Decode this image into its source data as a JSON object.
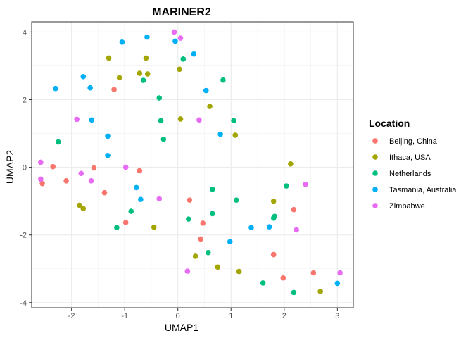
{
  "chart_data": {
    "type": "scatter",
    "title": "MARINER2",
    "xlabel": "UMAP1",
    "ylabel": "UMAP2",
    "xlim": [
      -2.75,
      3.3
    ],
    "ylim": [
      -4.15,
      4.3
    ],
    "xticks": [
      -2,
      -1,
      0,
      1,
      2,
      3
    ],
    "xtick_labels": [
      "-2",
      "-1",
      "0",
      "1",
      "2",
      "3"
    ],
    "yticks": [
      -4,
      -2,
      0,
      2,
      4
    ],
    "ytick_labels": [
      "-4",
      "-2",
      "0",
      "2",
      "4"
    ],
    "grid": true,
    "legend": {
      "title": "Location",
      "position": "right"
    },
    "series": [
      {
        "name": "Beijing, China",
        "color": "#F8766D",
        "points": [
          [
            -1.2,
            2.3
          ],
          [
            -2.55,
            -0.48
          ],
          [
            -2.35,
            0.02
          ],
          [
            -2.1,
            -0.4
          ],
          [
            -1.58,
            -0.02
          ],
          [
            -1.38,
            -0.75
          ],
          [
            -0.98,
            -1.63
          ],
          [
            -0.72,
            -0.1
          ],
          [
            0.22,
            -0.97
          ],
          [
            0.47,
            -1.65
          ],
          [
            0.43,
            -2.12
          ],
          [
            1.8,
            -2.58
          ],
          [
            2.18,
            -1.25
          ],
          [
            1.98,
            -3.27
          ],
          [
            2.55,
            -3.12
          ]
        ]
      },
      {
        "name": "Ithaca, USA",
        "color": "#A3A500",
        "points": [
          [
            -1.3,
            3.23
          ],
          [
            -1.1,
            2.65
          ],
          [
            -0.6,
            3.23
          ],
          [
            -0.72,
            2.78
          ],
          [
            -0.57,
            2.76
          ],
          [
            0.03,
            2.9
          ],
          [
            0.6,
            1.8
          ],
          [
            0.05,
            1.43
          ],
          [
            1.08,
            0.95
          ],
          [
            2.12,
            0.1
          ],
          [
            -1.85,
            -1.12
          ],
          [
            -1.78,
            -1.22
          ],
          [
            -0.45,
            -1.77
          ],
          [
            1.8,
            -1.0
          ],
          [
            0.75,
            -2.95
          ],
          [
            0.33,
            -2.63
          ],
          [
            1.15,
            -3.08
          ],
          [
            2.68,
            -3.67
          ]
        ]
      },
      {
        "name": "Netherlands",
        "color": "#00BF7D",
        "points": [
          [
            -0.65,
            2.57
          ],
          [
            0.1,
            3.2
          ],
          [
            0.85,
            2.58
          ],
          [
            -0.35,
            2.05
          ],
          [
            -0.32,
            1.38
          ],
          [
            -0.27,
            0.83
          ],
          [
            1.05,
            1.38
          ],
          [
            -2.25,
            0.75
          ],
          [
            -0.88,
            -1.3
          ],
          [
            -1.15,
            -1.78
          ],
          [
            0.2,
            -1.53
          ],
          [
            0.65,
            -0.65
          ],
          [
            1.1,
            -0.97
          ],
          [
            0.65,
            -1.37
          ],
          [
            0.57,
            -2.52
          ],
          [
            1.82,
            -1.45
          ],
          [
            2.04,
            -0.55
          ],
          [
            1.8,
            -1.5
          ],
          [
            1.6,
            -3.42
          ],
          [
            2.18,
            -3.7
          ]
        ]
      },
      {
        "name": "Tasmania, Australia",
        "color": "#00B0F6",
        "points": [
          [
            -1.05,
            3.7
          ],
          [
            -0.58,
            3.85
          ],
          [
            -0.05,
            3.73
          ],
          [
            0.3,
            3.35
          ],
          [
            -2.3,
            2.33
          ],
          [
            -1.78,
            2.68
          ],
          [
            -1.65,
            2.35
          ],
          [
            -1.62,
            1.4
          ],
          [
            -1.32,
            0.92
          ],
          [
            -1.32,
            0.35
          ],
          [
            0.53,
            2.27
          ],
          [
            0.8,
            0.98
          ],
          [
            -0.78,
            -0.6
          ],
          [
            -0.7,
            -0.95
          ],
          [
            1.38,
            -1.78
          ],
          [
            1.72,
            -1.76
          ],
          [
            0.98,
            -2.2
          ],
          [
            3.0,
            -3.43
          ]
        ]
      },
      {
        "name": "Zimbabwe",
        "color": "#E76BF3",
        "points": [
          [
            -0.07,
            4.0
          ],
          [
            0.05,
            3.82
          ],
          [
            -1.9,
            1.42
          ],
          [
            0.4,
            1.4
          ],
          [
            -2.58,
            0.15
          ],
          [
            -2.58,
            -0.35
          ],
          [
            -1.82,
            -0.18
          ],
          [
            -1.63,
            -0.4
          ],
          [
            -0.98,
            0.0
          ],
          [
            -0.35,
            -0.93
          ],
          [
            2.4,
            -0.5
          ],
          [
            2.23,
            -1.85
          ],
          [
            0.18,
            -3.07
          ],
          [
            3.05,
            -3.12
          ]
        ]
      }
    ]
  }
}
